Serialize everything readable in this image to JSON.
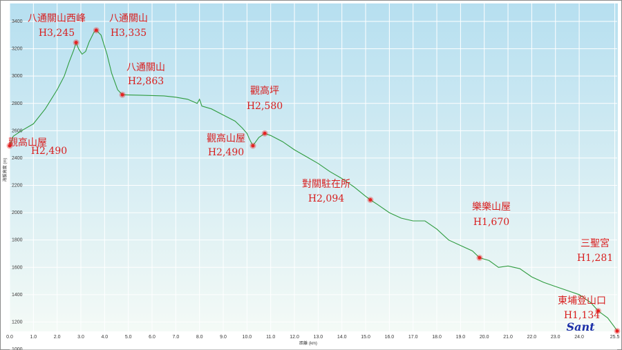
{
  "chart_data": {
    "type": "area",
    "xlabel": "距離 (km)",
    "ylabel": "海拔高度 (m)",
    "xlim": [
      0,
      25.6
    ],
    "ylim": [
      1000,
      3400
    ],
    "xticks": [
      "0.0",
      "1.0",
      "2.0",
      "3.0",
      "4.0",
      "5.0",
      "6.0",
      "7.0",
      "8.0",
      "9.0",
      "10.0",
      "11.0",
      "12.0",
      "13.0",
      "14.0",
      "15.0",
      "16.0",
      "17.0",
      "18.0",
      "19.0",
      "20.0",
      "21.0",
      "22.0",
      "23.0",
      "24.0",
      "25.5"
    ],
    "xtick_values": [
      0,
      1,
      2,
      3,
      4,
      5,
      6,
      7,
      8,
      9,
      10,
      11,
      12,
      13,
      14,
      15,
      16,
      17,
      18,
      19,
      20,
      21,
      22,
      23,
      24,
      25.5
    ],
    "yticks": [
      1000,
      1200,
      1400,
      1600,
      1800,
      2000,
      2200,
      2400,
      2600,
      2800,
      3000,
      3200,
      3400
    ],
    "grid": true,
    "colors": {
      "line": "#2e9b3e",
      "fill_top": "#b9e0ef",
      "fill_bottom": "#f1f8f4",
      "marker": "#e52222",
      "label": "#d81e1e"
    },
    "profile": [
      [
        0.0,
        2490
      ],
      [
        0.15,
        2560
      ],
      [
        0.5,
        2600
      ],
      [
        1.0,
        2650
      ],
      [
        1.5,
        2760
      ],
      [
        2.0,
        2900
      ],
      [
        2.3,
        3000
      ],
      [
        2.5,
        3100
      ],
      [
        2.7,
        3190
      ],
      [
        2.8,
        3245
      ],
      [
        2.9,
        3200
      ],
      [
        3.05,
        3160
      ],
      [
        3.2,
        3180
      ],
      [
        3.35,
        3250
      ],
      [
        3.55,
        3320
      ],
      [
        3.65,
        3335
      ],
      [
        3.85,
        3300
      ],
      [
        4.1,
        3160
      ],
      [
        4.3,
        3020
      ],
      [
        4.55,
        2900
      ],
      [
        4.75,
        2863
      ],
      [
        5.5,
        2860
      ],
      [
        6.5,
        2855
      ],
      [
        7.0,
        2845
      ],
      [
        7.5,
        2830
      ],
      [
        7.9,
        2800
      ],
      [
        8.0,
        2830
      ],
      [
        8.1,
        2780
      ],
      [
        8.5,
        2760
      ],
      [
        9.0,
        2715
      ],
      [
        9.5,
        2670
      ],
      [
        9.8,
        2620
      ],
      [
        10.0,
        2580
      ],
      [
        10.1,
        2540
      ],
      [
        10.25,
        2490
      ],
      [
        10.5,
        2550
      ],
      [
        10.75,
        2580
      ],
      [
        11.0,
        2565
      ],
      [
        11.5,
        2520
      ],
      [
        12.0,
        2460
      ],
      [
        12.5,
        2410
      ],
      [
        13.0,
        2360
      ],
      [
        13.5,
        2300
      ],
      [
        14.0,
        2250
      ],
      [
        14.5,
        2190
      ],
      [
        15.0,
        2120
      ],
      [
        15.2,
        2094
      ],
      [
        15.5,
        2060
      ],
      [
        16.0,
        2000
      ],
      [
        16.5,
        1960
      ],
      [
        17.0,
        1940
      ],
      [
        17.5,
        1940
      ],
      [
        18.0,
        1880
      ],
      [
        18.5,
        1800
      ],
      [
        19.0,
        1760
      ],
      [
        19.5,
        1720
      ],
      [
        19.8,
        1670
      ],
      [
        20.2,
        1650
      ],
      [
        20.6,
        1600
      ],
      [
        21.0,
        1610
      ],
      [
        21.5,
        1590
      ],
      [
        22.0,
        1530
      ],
      [
        22.5,
        1490
      ],
      [
        23.0,
        1460
      ],
      [
        23.5,
        1430
      ],
      [
        24.0,
        1400
      ],
      [
        24.5,
        1340
      ],
      [
        24.8,
        1281
      ],
      [
        25.2,
        1230
      ],
      [
        25.5,
        1160
      ],
      [
        25.6,
        1134
      ]
    ],
    "annotations": [
      {
        "x": 0.0,
        "y": 2490,
        "name": "觀高山屋",
        "elev": "H2,490"
      },
      {
        "x": 2.8,
        "y": 3245,
        "name": "八通關山西峰",
        "elev": "H3,245"
      },
      {
        "x": 3.65,
        "y": 3335,
        "name": "八通關山",
        "elev": "H3,335"
      },
      {
        "x": 4.75,
        "y": 2863,
        "name": "八通關山",
        "elev": "H2,863"
      },
      {
        "x": 10.25,
        "y": 2490,
        "name": "觀高山屋",
        "elev": "H2,490"
      },
      {
        "x": 10.75,
        "y": 2580,
        "name": "觀高坪",
        "elev": "H2,580"
      },
      {
        "x": 15.2,
        "y": 2094,
        "name": "對關駐在所",
        "elev": "H2,094"
      },
      {
        "x": 19.8,
        "y": 1670,
        "name": "樂樂山屋",
        "elev": "H1,670"
      },
      {
        "x": 24.8,
        "y": 1281,
        "name": "三聖宮",
        "elev": "H1,281"
      },
      {
        "x": 25.6,
        "y": 1134,
        "name": "東埔登山口",
        "elev": "H1,134"
      }
    ],
    "watermark": "Sant"
  }
}
